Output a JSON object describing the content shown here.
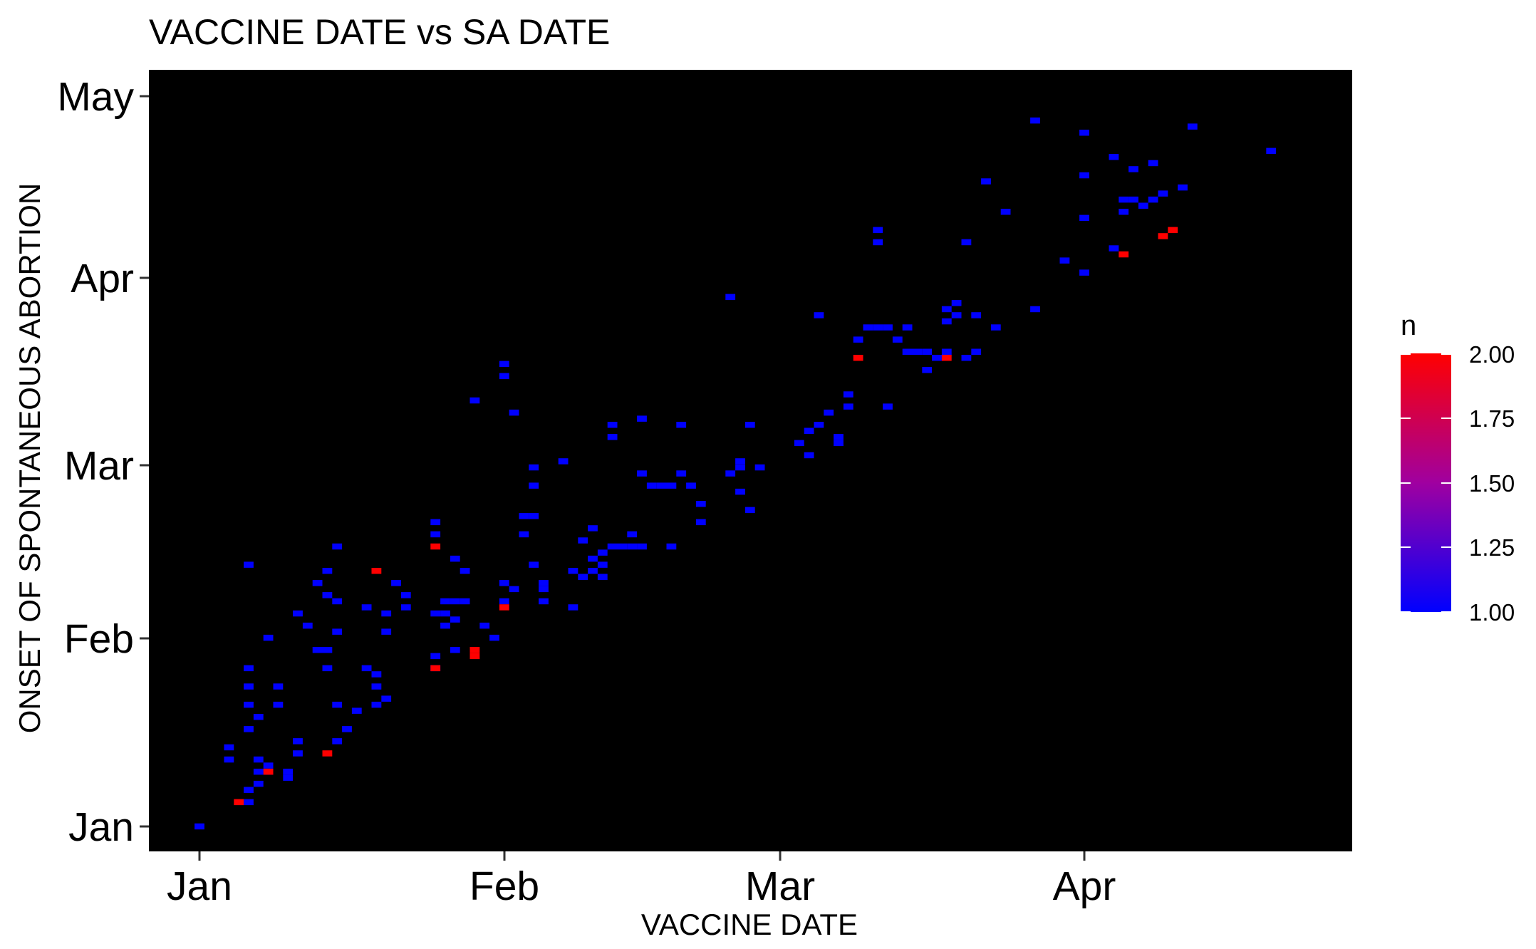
{
  "chart_data": {
    "type": "heatmap",
    "title": "VACCINE DATE vs SA DATE",
    "xlabel": "VACCINE DATE",
    "ylabel": "ONSET OF SPONTANEOUS ABORTION",
    "x_ticks": [
      "Jan",
      "Feb",
      "Mar",
      "Apr"
    ],
    "y_ticks": [
      "Jan",
      "Feb",
      "Mar",
      "Apr",
      "May"
    ],
    "xlim": [
      "2021-12-27",
      "2021-04-28"
    ],
    "ylim": [
      "2021-12-30",
      "2021-05-06"
    ],
    "panel_background": "#000000",
    "grid": false,
    "legend": {
      "title": "n",
      "position": "right",
      "low_color": "#0000ff",
      "high_color": "#ff0000",
      "range": [
        1.0,
        2.0
      ],
      "ticks": [
        "1.00",
        "1.25",
        "1.50",
        "1.75",
        "2.00"
      ]
    },
    "series": [
      {
        "value": 1,
        "points": [
          [
            "2021-01-01",
            "2021-01-01"
          ],
          [
            "2021-01-04",
            "2021-01-12"
          ],
          [
            "2021-01-04",
            "2021-01-14"
          ],
          [
            "2021-01-06",
            "2021-01-05"
          ],
          [
            "2021-01-06",
            "2021-01-07"
          ],
          [
            "2021-01-06",
            "2021-01-17"
          ],
          [
            "2021-01-06",
            "2021-01-21"
          ],
          [
            "2021-01-06",
            "2021-01-24"
          ],
          [
            "2021-01-06",
            "2021-01-27"
          ],
          [
            "2021-01-06",
            "2021-02-13"
          ],
          [
            "2021-01-07",
            "2021-01-08"
          ],
          [
            "2021-01-07",
            "2021-01-10"
          ],
          [
            "2021-01-07",
            "2021-01-12"
          ],
          [
            "2021-01-07",
            "2021-01-19"
          ],
          [
            "2021-01-08",
            "2021-01-10"
          ],
          [
            "2021-01-08",
            "2021-01-11"
          ],
          [
            "2021-01-08",
            "2021-02-01"
          ],
          [
            "2021-01-09",
            "2021-01-21"
          ],
          [
            "2021-01-09",
            "2021-01-24"
          ],
          [
            "2021-01-10",
            "2021-01-09"
          ],
          [
            "2021-01-10",
            "2021-01-10"
          ],
          [
            "2021-01-11",
            "2021-01-13"
          ],
          [
            "2021-01-11",
            "2021-01-15"
          ],
          [
            "2021-01-11",
            "2021-02-05"
          ],
          [
            "2021-01-12",
            "2021-02-03"
          ],
          [
            "2021-01-13",
            "2021-01-30"
          ],
          [
            "2021-01-13",
            "2021-02-10"
          ],
          [
            "2021-01-14",
            "2021-01-27"
          ],
          [
            "2021-01-14",
            "2021-01-30"
          ],
          [
            "2021-01-14",
            "2021-02-08"
          ],
          [
            "2021-01-14",
            "2021-02-12"
          ],
          [
            "2021-01-15",
            "2021-01-15"
          ],
          [
            "2021-01-15",
            "2021-01-21"
          ],
          [
            "2021-01-15",
            "2021-02-02"
          ],
          [
            "2021-01-15",
            "2021-02-07"
          ],
          [
            "2021-01-15",
            "2021-02-16"
          ],
          [
            "2021-01-16",
            "2021-01-17"
          ],
          [
            "2021-01-17",
            "2021-01-20"
          ],
          [
            "2021-01-18",
            "2021-01-27"
          ],
          [
            "2021-01-18",
            "2021-02-06"
          ],
          [
            "2021-01-19",
            "2021-01-21"
          ],
          [
            "2021-01-19",
            "2021-01-24"
          ],
          [
            "2021-01-19",
            "2021-01-26"
          ],
          [
            "2021-01-20",
            "2021-01-22"
          ],
          [
            "2021-01-20",
            "2021-02-02"
          ],
          [
            "2021-01-20",
            "2021-02-05"
          ],
          [
            "2021-01-21",
            "2021-02-10"
          ],
          [
            "2021-01-22",
            "2021-02-06"
          ],
          [
            "2021-01-22",
            "2021-02-08"
          ],
          [
            "2021-01-25",
            "2021-01-27"
          ],
          [
            "2021-01-25",
            "2021-01-29"
          ],
          [
            "2021-01-25",
            "2021-02-05"
          ],
          [
            "2021-01-25",
            "2021-02-18"
          ],
          [
            "2021-01-25",
            "2021-02-20"
          ],
          [
            "2021-01-26",
            "2021-02-03"
          ],
          [
            "2021-01-26",
            "2021-02-05"
          ],
          [
            "2021-01-26",
            "2021-02-07"
          ],
          [
            "2021-01-27",
            "2021-01-30"
          ],
          [
            "2021-01-27",
            "2021-02-04"
          ],
          [
            "2021-01-27",
            "2021-02-07"
          ],
          [
            "2021-01-27",
            "2021-02-14"
          ],
          [
            "2021-01-28",
            "2021-02-07"
          ],
          [
            "2021-01-28",
            "2021-02-12"
          ],
          [
            "2021-01-29",
            "2021-03-12"
          ],
          [
            "2021-01-30",
            "2021-02-03"
          ],
          [
            "2021-01-31",
            "2021-02-01"
          ],
          [
            "2021-02-01",
            "2021-02-07"
          ],
          [
            "2021-02-01",
            "2021-02-10"
          ],
          [
            "2021-02-01",
            "2021-03-16"
          ],
          [
            "2021-02-01",
            "2021-03-18"
          ],
          [
            "2021-02-02",
            "2021-02-09"
          ],
          [
            "2021-02-02",
            "2021-03-10"
          ],
          [
            "2021-02-03",
            "2021-02-18"
          ],
          [
            "2021-02-03",
            "2021-02-21"
          ],
          [
            "2021-02-04",
            "2021-02-13"
          ],
          [
            "2021-02-04",
            "2021-02-21"
          ],
          [
            "2021-02-04",
            "2021-02-26"
          ],
          [
            "2021-02-04",
            "2021-03-01"
          ],
          [
            "2021-02-05",
            "2021-02-07"
          ],
          [
            "2021-02-05",
            "2021-02-09"
          ],
          [
            "2021-02-05",
            "2021-02-10"
          ],
          [
            "2021-02-07",
            "2021-03-02"
          ],
          [
            "2021-02-08",
            "2021-02-06"
          ],
          [
            "2021-02-08",
            "2021-02-12"
          ],
          [
            "2021-02-09",
            "2021-02-11"
          ],
          [
            "2021-02-09",
            "2021-02-17"
          ],
          [
            "2021-02-10",
            "2021-02-12"
          ],
          [
            "2021-02-10",
            "2021-02-14"
          ],
          [
            "2021-02-10",
            "2021-02-19"
          ],
          [
            "2021-02-11",
            "2021-02-11"
          ],
          [
            "2021-02-11",
            "2021-02-13"
          ],
          [
            "2021-02-11",
            "2021-02-15"
          ],
          [
            "2021-02-12",
            "2021-02-16"
          ],
          [
            "2021-02-12",
            "2021-03-06"
          ],
          [
            "2021-02-12",
            "2021-03-08"
          ],
          [
            "2021-02-13",
            "2021-02-16"
          ],
          [
            "2021-02-14",
            "2021-02-16"
          ],
          [
            "2021-02-14",
            "2021-02-18"
          ],
          [
            "2021-02-15",
            "2021-02-16"
          ],
          [
            "2021-02-15",
            "2021-02-28"
          ],
          [
            "2021-02-15",
            "2021-03-09"
          ],
          [
            "2021-02-16",
            "2021-02-26"
          ],
          [
            "2021-02-17",
            "2021-02-26"
          ],
          [
            "2021-02-18",
            "2021-02-16"
          ],
          [
            "2021-02-18",
            "2021-02-26"
          ],
          [
            "2021-02-19",
            "2021-02-28"
          ],
          [
            "2021-02-19",
            "2021-03-08"
          ],
          [
            "2021-02-20",
            "2021-02-26"
          ],
          [
            "2021-02-21",
            "2021-02-20"
          ],
          [
            "2021-02-21",
            "2021-02-23"
          ],
          [
            "2021-02-24",
            "2021-02-28"
          ],
          [
            "2021-02-24",
            "2021-03-29"
          ],
          [
            "2021-02-25",
            "2021-03-01"
          ],
          [
            "2021-02-25",
            "2021-03-02"
          ],
          [
            "2021-02-25",
            "2021-02-25"
          ],
          [
            "2021-02-26",
            "2021-02-22"
          ],
          [
            "2021-02-26",
            "2021-03-08"
          ],
          [
            "2021-02-27",
            "2021-03-01"
          ],
          [
            "2021-03-03",
            "2021-03-05"
          ],
          [
            "2021-03-04",
            "2021-03-03"
          ],
          [
            "2021-03-04",
            "2021-03-07"
          ],
          [
            "2021-03-05",
            "2021-03-08"
          ],
          [
            "2021-03-05",
            "2021-03-26"
          ],
          [
            "2021-03-06",
            "2021-03-10"
          ],
          [
            "2021-03-07",
            "2021-03-05"
          ],
          [
            "2021-03-07",
            "2021-03-06"
          ],
          [
            "2021-03-08",
            "2021-03-11"
          ],
          [
            "2021-03-08",
            "2021-03-13"
          ],
          [
            "2021-03-09",
            "2021-03-22"
          ],
          [
            "2021-03-10",
            "2021-03-24"
          ],
          [
            "2021-03-11",
            "2021-04-09"
          ],
          [
            "2021-03-11",
            "2021-04-07"
          ],
          [
            "2021-03-11",
            "2021-03-24"
          ],
          [
            "2021-03-12",
            "2021-03-24"
          ],
          [
            "2021-03-12",
            "2021-03-11"
          ],
          [
            "2021-03-13",
            "2021-03-22"
          ],
          [
            "2021-03-14",
            "2021-03-20"
          ],
          [
            "2021-03-14",
            "2021-03-24"
          ],
          [
            "2021-03-15",
            "2021-03-20"
          ],
          [
            "2021-03-16",
            "2021-03-20"
          ],
          [
            "2021-03-16",
            "2021-03-17"
          ],
          [
            "2021-03-17",
            "2021-03-19"
          ],
          [
            "2021-03-18",
            "2021-03-20"
          ],
          [
            "2021-03-18",
            "2021-03-25"
          ],
          [
            "2021-03-18",
            "2021-03-27"
          ],
          [
            "2021-03-19",
            "2021-03-26"
          ],
          [
            "2021-03-19",
            "2021-03-28"
          ],
          [
            "2021-03-20",
            "2021-03-19"
          ],
          [
            "2021-03-20",
            "2021-04-07"
          ],
          [
            "2021-03-21",
            "2021-03-20"
          ],
          [
            "2021-03-21",
            "2021-03-26"
          ],
          [
            "2021-03-22",
            "2021-04-17"
          ],
          [
            "2021-03-23",
            "2021-03-24"
          ],
          [
            "2021-03-24",
            "2021-04-12"
          ],
          [
            "2021-03-27",
            "2021-03-27"
          ],
          [
            "2021-03-27",
            "2021-04-27"
          ],
          [
            "2021-03-30",
            "2021-04-04"
          ],
          [
            "2021-04-01",
            "2021-04-02"
          ],
          [
            "2021-04-01",
            "2021-04-11"
          ],
          [
            "2021-04-01",
            "2021-04-18"
          ],
          [
            "2021-04-01",
            "2021-04-25"
          ],
          [
            "2021-04-04",
            "2021-04-21"
          ],
          [
            "2021-04-04",
            "2021-04-06"
          ],
          [
            "2021-04-05",
            "2021-04-12"
          ],
          [
            "2021-04-05",
            "2021-04-14"
          ],
          [
            "2021-04-06",
            "2021-04-19"
          ],
          [
            "2021-04-06",
            "2021-04-14"
          ],
          [
            "2021-04-07",
            "2021-04-13"
          ],
          [
            "2021-04-08",
            "2021-04-14"
          ],
          [
            "2021-04-08",
            "2021-04-20"
          ],
          [
            "2021-04-09",
            "2021-04-15"
          ],
          [
            "2021-04-11",
            "2021-04-16"
          ],
          [
            "2021-04-12",
            "2021-04-26"
          ],
          [
            "2021-04-20",
            "2021-04-22"
          ]
        ]
      },
      {
        "value": 2,
        "points": [
          [
            "2021-01-05",
            "2021-01-05"
          ],
          [
            "2021-01-08",
            "2021-01-10"
          ],
          [
            "2021-01-14",
            "2021-01-13"
          ],
          [
            "2021-01-19",
            "2021-02-12"
          ],
          [
            "2021-01-25",
            "2021-02-16"
          ],
          [
            "2021-01-25",
            "2021-01-27"
          ],
          [
            "2021-01-29",
            "2021-01-29"
          ],
          [
            "2021-01-29",
            "2021-01-30"
          ],
          [
            "2021-02-01",
            "2021-02-06"
          ],
          [
            "2021-03-09",
            "2021-03-19"
          ],
          [
            "2021-03-18",
            "2021-03-19"
          ],
          [
            "2021-04-05",
            "2021-04-05"
          ],
          [
            "2021-04-09",
            "2021-04-08"
          ],
          [
            "2021-04-10",
            "2021-04-09"
          ]
        ]
      }
    ]
  }
}
